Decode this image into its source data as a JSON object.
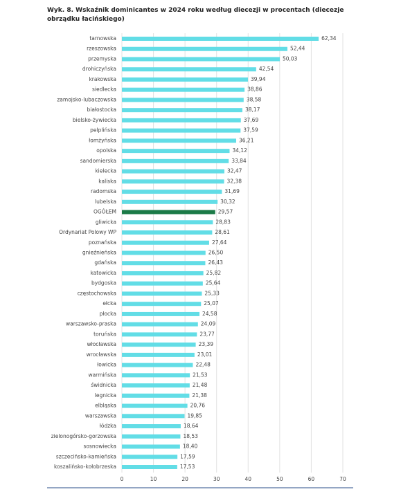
{
  "chart_data": {
    "type": "hbar",
    "title": "Wyk. 8. Wskaźnik dominicantes w 2024 roku według diecezji w procentach (diecezje obrządku łacińskiego)",
    "categories": [
      "tarnowska",
      "rzeszowska",
      "przemyska",
      "drohiczyńska",
      "krakowska",
      "siedlecka",
      "zamojsko-lubaczowska",
      "białostocka",
      "bielsko-żywiecka",
      "pelplińska",
      "łomżyńska",
      "opolska",
      "sandomierska",
      "kielecka",
      "kaliska",
      "radomska",
      "lubelska",
      "OGÓŁEM",
      "gliwicka",
      "Ordynariat Polowy WP",
      "poznańska",
      "gnieźnieńska",
      "gdańska",
      "katowicka",
      "bydgoska",
      "częstochowska",
      "ełcka",
      "płocka",
      "warszawsko-praska",
      "toruńska",
      "włocławska",
      "wrocławska",
      "łowicka",
      "warmińska",
      "świdnicka",
      "legnicka",
      "elbląska",
      "warszawska",
      "łódzka",
      "zielonogórsko-gorzowska",
      "sosnowiecka",
      "szczecińsko-kamieńska",
      "koszalińsko-kołobrzeska"
    ],
    "values": [
      62.34,
      52.44,
      50.03,
      42.54,
      39.94,
      38.86,
      38.58,
      38.17,
      37.69,
      37.59,
      36.21,
      34.12,
      33.84,
      32.47,
      32.38,
      31.69,
      30.32,
      29.57,
      28.83,
      28.61,
      27.64,
      26.5,
      26.43,
      25.82,
      25.64,
      25.33,
      25.07,
      24.58,
      24.09,
      23.77,
      23.39,
      23.01,
      22.48,
      21.53,
      21.48,
      21.38,
      20.76,
      19.85,
      18.64,
      18.53,
      18.4,
      17.59,
      17.53
    ],
    "value_labels": [
      "62,34",
      "52,44",
      "50,03",
      "42,54",
      "39,94",
      "38,86",
      "38,58",
      "38,17",
      "37,69",
      "37,59",
      "36,21",
      "34,12",
      "33,84",
      "32,47",
      "32,38",
      "31,69",
      "30,32",
      "29,57",
      "28,83",
      "28,61",
      "27,64",
      "26,50",
      "26,43",
      "25,82",
      "25,64",
      "25,33",
      "25,07",
      "24,58",
      "24,09",
      "23,77",
      "23,39",
      "23,01",
      "22,48",
      "21,53",
      "21,48",
      "21,38",
      "20,76",
      "19,85",
      "18,64",
      "18,53",
      "18,40",
      "17,59",
      "17,53"
    ],
    "colors": [
      "#62dde6",
      "#62dde6",
      "#62dde6",
      "#62dde6",
      "#62dde6",
      "#62dde6",
      "#62dde6",
      "#62dde6",
      "#62dde6",
      "#62dde6",
      "#62dde6",
      "#62dde6",
      "#62dde6",
      "#62dde6",
      "#62dde6",
      "#62dde6",
      "#62dde6",
      "#1b7a47",
      "#62dde6",
      "#62dde6",
      "#62dde6",
      "#62dde6",
      "#62dde6",
      "#62dde6",
      "#62dde6",
      "#62dde6",
      "#62dde6",
      "#62dde6",
      "#62dde6",
      "#62dde6",
      "#62dde6",
      "#62dde6",
      "#62dde6",
      "#62dde6",
      "#62dde6",
      "#62dde6",
      "#62dde6",
      "#62dde6",
      "#62dde6",
      "#62dde6",
      "#62dde6",
      "#62dde6",
      "#62dde6"
    ],
    "xlim": [
      0,
      70
    ],
    "xticks": [
      0,
      10,
      20,
      30,
      40,
      50,
      60,
      70
    ],
    "grid": true
  }
}
